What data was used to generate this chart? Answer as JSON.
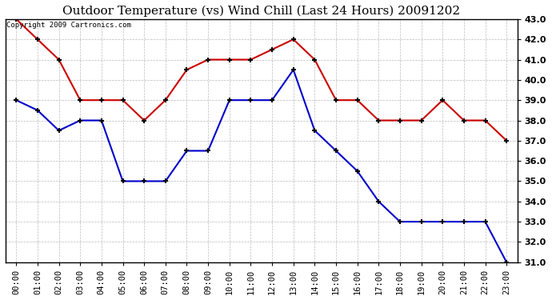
{
  "title": "Outdoor Temperature (vs) Wind Chill (Last 24 Hours) 20091202",
  "copyright": "Copyright 2009 Cartronics.com",
  "x_labels": [
    "00:00",
    "01:00",
    "02:00",
    "03:00",
    "04:00",
    "05:00",
    "06:00",
    "07:00",
    "08:00",
    "09:00",
    "10:00",
    "11:00",
    "12:00",
    "13:00",
    "14:00",
    "15:00",
    "16:00",
    "17:00",
    "18:00",
    "19:00",
    "20:00",
    "21:00",
    "22:00",
    "23:00"
  ],
  "temp_red": [
    43.0,
    42.0,
    41.0,
    39.0,
    39.0,
    39.0,
    38.0,
    39.0,
    40.5,
    41.0,
    41.0,
    41.0,
    41.5,
    42.0,
    41.0,
    39.0,
    39.0,
    38.0,
    38.0,
    38.0,
    39.0,
    38.0,
    38.0,
    37.0
  ],
  "temp_blue": [
    39.0,
    38.5,
    37.5,
    38.0,
    38.0,
    35.0,
    35.0,
    35.0,
    36.5,
    36.5,
    39.0,
    39.0,
    39.0,
    40.5,
    37.5,
    36.5,
    35.5,
    34.0,
    33.0,
    33.0,
    33.0,
    33.0,
    33.0,
    31.0
  ],
  "ylim": [
    31.0,
    43.0
  ],
  "yticks": [
    31.0,
    32.0,
    33.0,
    34.0,
    35.0,
    36.0,
    37.0,
    38.0,
    39.0,
    40.0,
    41.0,
    42.0,
    43.0
  ],
  "red_color": "#cc0000",
  "blue_color": "#0000cc",
  "background_color": "#ffffff",
  "grid_color": "#bbbbbb",
  "title_fontsize": 11,
  "copyright_fontsize": 6.5,
  "tick_fontsize": 7.5,
  "ytick_fontsize": 8
}
